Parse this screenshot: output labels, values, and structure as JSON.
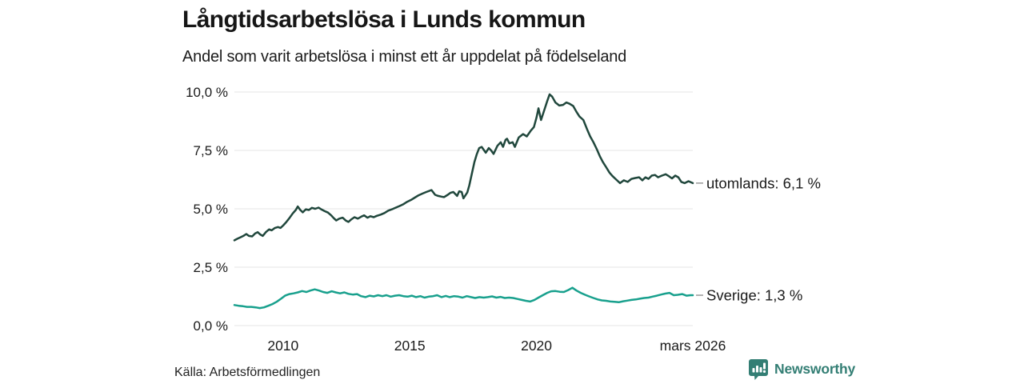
{
  "source": "Källa: Arbetsförmedlingen",
  "branding": {
    "name": "Newsworthy",
    "color": "#337e74"
  },
  "colors": {
    "text": "#1a1a1a",
    "grid": "#e6e6e6",
    "label_dash": "#999999",
    "utomlands_line": "#20473c",
    "sverige_line": "#18a08d"
  },
  "chart_data": {
    "type": "line",
    "title": "Långtidsarbetslösa i Lunds kommun",
    "subtitle": "Andel som varit arbetslösa i minst ett år uppdelat på födelseland",
    "xlabel": "",
    "ylabel": "",
    "grid": true,
    "x_domain": [
      2008.08,
      2026.17
    ],
    "ylim": [
      0,
      10
    ],
    "y_ticks": [
      {
        "value": 0,
        "label": "0,0 %"
      },
      {
        "value": 2.5,
        "label": "2,5 %"
      },
      {
        "value": 5,
        "label": "5,0 %"
      },
      {
        "value": 7.5,
        "label": "7,5 %"
      },
      {
        "value": 10,
        "label": "10,0 %"
      }
    ],
    "x_ticks": [
      {
        "value": 2010,
        "label": "2010"
      },
      {
        "value": 2015,
        "label": "2015"
      },
      {
        "value": 2020,
        "label": "2020"
      },
      {
        "value": 2026.17,
        "label": "mars 2026"
      }
    ],
    "legend_position": "line-end-labels",
    "series": [
      {
        "name": "utomlands",
        "end_label": "utomlands: 6,1 %",
        "color": "#20473c",
        "points": [
          [
            2008.08,
            3.65
          ],
          [
            2008.2,
            3.72
          ],
          [
            2008.32,
            3.78
          ],
          [
            2008.45,
            3.85
          ],
          [
            2008.55,
            3.92
          ],
          [
            2008.65,
            3.84
          ],
          [
            2008.78,
            3.82
          ],
          [
            2008.9,
            3.95
          ],
          [
            2009.0,
            4.0
          ],
          [
            2009.1,
            3.9
          ],
          [
            2009.2,
            3.84
          ],
          [
            2009.32,
            4.0
          ],
          [
            2009.45,
            4.12
          ],
          [
            2009.55,
            4.08
          ],
          [
            2009.68,
            4.18
          ],
          [
            2009.8,
            4.22
          ],
          [
            2009.9,
            4.18
          ],
          [
            2010.0,
            4.28
          ],
          [
            2010.12,
            4.42
          ],
          [
            2010.25,
            4.6
          ],
          [
            2010.38,
            4.8
          ],
          [
            2010.5,
            4.95
          ],
          [
            2010.58,
            5.1
          ],
          [
            2010.68,
            4.95
          ],
          [
            2010.78,
            4.85
          ],
          [
            2010.9,
            4.98
          ],
          [
            2011.02,
            4.95
          ],
          [
            2011.14,
            5.04
          ],
          [
            2011.27,
            5.0
          ],
          [
            2011.4,
            5.05
          ],
          [
            2011.52,
            4.97
          ],
          [
            2011.64,
            4.9
          ],
          [
            2011.77,
            4.84
          ],
          [
            2011.9,
            4.72
          ],
          [
            2012.0,
            4.6
          ],
          [
            2012.1,
            4.5
          ],
          [
            2012.22,
            4.58
          ],
          [
            2012.35,
            4.62
          ],
          [
            2012.47,
            4.5
          ],
          [
            2012.58,
            4.44
          ],
          [
            2012.7,
            4.55
          ],
          [
            2012.82,
            4.64
          ],
          [
            2012.95,
            4.58
          ],
          [
            2013.08,
            4.66
          ],
          [
            2013.2,
            4.72
          ],
          [
            2013.33,
            4.62
          ],
          [
            2013.45,
            4.68
          ],
          [
            2013.58,
            4.64
          ],
          [
            2013.7,
            4.7
          ],
          [
            2013.85,
            4.75
          ],
          [
            2014.0,
            4.82
          ],
          [
            2014.15,
            4.92
          ],
          [
            2014.3,
            4.98
          ],
          [
            2014.45,
            5.05
          ],
          [
            2014.6,
            5.12
          ],
          [
            2014.75,
            5.2
          ],
          [
            2014.9,
            5.3
          ],
          [
            2015.05,
            5.38
          ],
          [
            2015.2,
            5.48
          ],
          [
            2015.35,
            5.58
          ],
          [
            2015.5,
            5.65
          ],
          [
            2015.65,
            5.72
          ],
          [
            2015.86,
            5.8
          ],
          [
            2016.0,
            5.6
          ],
          [
            2016.12,
            5.55
          ],
          [
            2016.25,
            5.52
          ],
          [
            2016.35,
            5.5
          ],
          [
            2016.5,
            5.6
          ],
          [
            2016.6,
            5.68
          ],
          [
            2016.72,
            5.72
          ],
          [
            2016.87,
            5.55
          ],
          [
            2016.95,
            5.75
          ],
          [
            2017.05,
            5.72
          ],
          [
            2017.12,
            5.45
          ],
          [
            2017.27,
            5.7
          ],
          [
            2017.35,
            6.0
          ],
          [
            2017.45,
            6.5
          ],
          [
            2017.55,
            7.0
          ],
          [
            2017.65,
            7.35
          ],
          [
            2017.74,
            7.6
          ],
          [
            2017.84,
            7.65
          ],
          [
            2018.0,
            7.4
          ],
          [
            2018.12,
            7.6
          ],
          [
            2018.21,
            7.5
          ],
          [
            2018.31,
            7.35
          ],
          [
            2018.46,
            7.7
          ],
          [
            2018.59,
            7.85
          ],
          [
            2018.68,
            7.65
          ],
          [
            2018.78,
            7.95
          ],
          [
            2018.84,
            8.0
          ],
          [
            2018.93,
            7.8
          ],
          [
            2019.06,
            7.85
          ],
          [
            2019.15,
            7.65
          ],
          [
            2019.3,
            8.05
          ],
          [
            2019.47,
            8.2
          ],
          [
            2019.62,
            8.1
          ],
          [
            2019.78,
            8.35
          ],
          [
            2019.9,
            8.5
          ],
          [
            2020.0,
            8.9
          ],
          [
            2020.08,
            9.3
          ],
          [
            2020.18,
            8.8
          ],
          [
            2020.3,
            9.2
          ],
          [
            2020.42,
            9.6
          ],
          [
            2020.52,
            9.9
          ],
          [
            2020.62,
            9.8
          ],
          [
            2020.75,
            9.55
          ],
          [
            2020.9,
            9.42
          ],
          [
            2021.05,
            9.45
          ],
          [
            2021.18,
            9.55
          ],
          [
            2021.3,
            9.5
          ],
          [
            2021.45,
            9.4
          ],
          [
            2021.58,
            9.15
          ],
          [
            2021.7,
            8.95
          ],
          [
            2021.85,
            8.8
          ],
          [
            2022.0,
            8.4
          ],
          [
            2022.12,
            8.1
          ],
          [
            2022.25,
            7.85
          ],
          [
            2022.38,
            7.55
          ],
          [
            2022.5,
            7.25
          ],
          [
            2022.62,
            7.0
          ],
          [
            2022.75,
            6.78
          ],
          [
            2022.88,
            6.55
          ],
          [
            2023.0,
            6.4
          ],
          [
            2023.15,
            6.25
          ],
          [
            2023.3,
            6.1
          ],
          [
            2023.45,
            6.22
          ],
          [
            2023.6,
            6.15
          ],
          [
            2023.75,
            6.28
          ],
          [
            2023.9,
            6.32
          ],
          [
            2024.05,
            6.35
          ],
          [
            2024.18,
            6.22
          ],
          [
            2024.3,
            6.35
          ],
          [
            2024.42,
            6.28
          ],
          [
            2024.55,
            6.42
          ],
          [
            2024.68,
            6.45
          ],
          [
            2024.8,
            6.35
          ],
          [
            2024.95,
            6.42
          ],
          [
            2025.1,
            6.48
          ],
          [
            2025.22,
            6.4
          ],
          [
            2025.35,
            6.3
          ],
          [
            2025.48,
            6.42
          ],
          [
            2025.6,
            6.35
          ],
          [
            2025.72,
            6.15
          ],
          [
            2025.85,
            6.1
          ],
          [
            2026.0,
            6.18
          ],
          [
            2026.17,
            6.1
          ]
        ]
      },
      {
        "name": "Sverige",
        "end_label": "Sverige: 1,3 %",
        "color": "#18a08d",
        "points": [
          [
            2008.08,
            0.88
          ],
          [
            2008.25,
            0.85
          ],
          [
            2008.42,
            0.83
          ],
          [
            2008.58,
            0.8
          ],
          [
            2008.75,
            0.8
          ],
          [
            2008.92,
            0.78
          ],
          [
            2009.08,
            0.75
          ],
          [
            2009.25,
            0.78
          ],
          [
            2009.42,
            0.85
          ],
          [
            2009.58,
            0.92
          ],
          [
            2009.75,
            1.02
          ],
          [
            2009.92,
            1.15
          ],
          [
            2010.08,
            1.28
          ],
          [
            2010.25,
            1.35
          ],
          [
            2010.42,
            1.38
          ],
          [
            2010.58,
            1.42
          ],
          [
            2010.75,
            1.48
          ],
          [
            2010.92,
            1.44
          ],
          [
            2011.08,
            1.5
          ],
          [
            2011.25,
            1.55
          ],
          [
            2011.42,
            1.5
          ],
          [
            2011.58,
            1.44
          ],
          [
            2011.75,
            1.4
          ],
          [
            2011.92,
            1.47
          ],
          [
            2012.08,
            1.42
          ],
          [
            2012.25,
            1.38
          ],
          [
            2012.42,
            1.42
          ],
          [
            2012.58,
            1.36
          ],
          [
            2012.75,
            1.33
          ],
          [
            2012.92,
            1.35
          ],
          [
            2013.08,
            1.26
          ],
          [
            2013.25,
            1.22
          ],
          [
            2013.42,
            1.28
          ],
          [
            2013.58,
            1.25
          ],
          [
            2013.75,
            1.3
          ],
          [
            2013.92,
            1.26
          ],
          [
            2014.08,
            1.3
          ],
          [
            2014.25,
            1.24
          ],
          [
            2014.42,
            1.28
          ],
          [
            2014.58,
            1.3
          ],
          [
            2014.75,
            1.26
          ],
          [
            2014.92,
            1.24
          ],
          [
            2015.08,
            1.28
          ],
          [
            2015.25,
            1.22
          ],
          [
            2015.42,
            1.26
          ],
          [
            2015.58,
            1.2
          ],
          [
            2015.75,
            1.24
          ],
          [
            2015.92,
            1.26
          ],
          [
            2016.08,
            1.3
          ],
          [
            2016.25,
            1.22
          ],
          [
            2016.42,
            1.27
          ],
          [
            2016.58,
            1.22
          ],
          [
            2016.75,
            1.26
          ],
          [
            2016.92,
            1.24
          ],
          [
            2017.08,
            1.2
          ],
          [
            2017.25,
            1.26
          ],
          [
            2017.42,
            1.22
          ],
          [
            2017.58,
            1.18
          ],
          [
            2017.75,
            1.22
          ],
          [
            2017.92,
            1.2
          ],
          [
            2018.08,
            1.22
          ],
          [
            2018.25,
            1.25
          ],
          [
            2018.42,
            1.2
          ],
          [
            2018.58,
            1.23
          ],
          [
            2018.75,
            1.18
          ],
          [
            2018.92,
            1.2
          ],
          [
            2019.08,
            1.18
          ],
          [
            2019.25,
            1.14
          ],
          [
            2019.42,
            1.1
          ],
          [
            2019.58,
            1.06
          ],
          [
            2019.75,
            1.03
          ],
          [
            2019.92,
            1.1
          ],
          [
            2020.08,
            1.2
          ],
          [
            2020.25,
            1.3
          ],
          [
            2020.42,
            1.4
          ],
          [
            2020.58,
            1.47
          ],
          [
            2020.75,
            1.48
          ],
          [
            2020.92,
            1.45
          ],
          [
            2021.08,
            1.44
          ],
          [
            2021.25,
            1.52
          ],
          [
            2021.42,
            1.62
          ],
          [
            2021.58,
            1.5
          ],
          [
            2021.75,
            1.4
          ],
          [
            2021.92,
            1.32
          ],
          [
            2022.08,
            1.25
          ],
          [
            2022.25,
            1.18
          ],
          [
            2022.42,
            1.12
          ],
          [
            2022.58,
            1.08
          ],
          [
            2022.75,
            1.06
          ],
          [
            2022.92,
            1.03
          ],
          [
            2023.08,
            1.02
          ],
          [
            2023.25,
            1.0
          ],
          [
            2023.42,
            1.04
          ],
          [
            2023.58,
            1.07
          ],
          [
            2023.75,
            1.1
          ],
          [
            2023.92,
            1.12
          ],
          [
            2024.08,
            1.15
          ],
          [
            2024.25,
            1.18
          ],
          [
            2024.42,
            1.2
          ],
          [
            2024.58,
            1.24
          ],
          [
            2024.75,
            1.28
          ],
          [
            2024.92,
            1.33
          ],
          [
            2025.08,
            1.37
          ],
          [
            2025.25,
            1.4
          ],
          [
            2025.42,
            1.3
          ],
          [
            2025.58,
            1.32
          ],
          [
            2025.75,
            1.35
          ],
          [
            2025.92,
            1.28
          ],
          [
            2026.08,
            1.3
          ],
          [
            2026.17,
            1.3
          ]
        ]
      }
    ]
  }
}
